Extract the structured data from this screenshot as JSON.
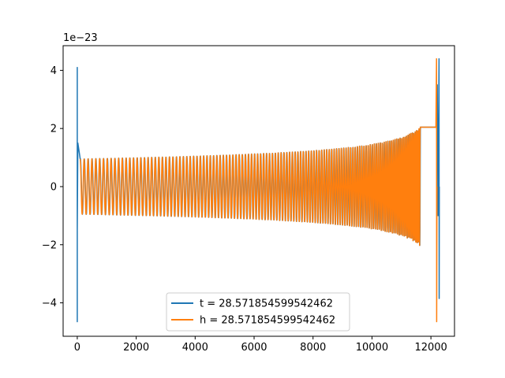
{
  "chart_data": {
    "type": "line",
    "title": "",
    "xlabel": "",
    "ylabel": "",
    "y_offset_label": "1e−23",
    "xlim": [
      -480,
      12800
    ],
    "ylim": [
      -5.15,
      4.85
    ],
    "x_ticks": [
      0,
      2000,
      4000,
      6000,
      8000,
      10000,
      12000
    ],
    "x_tick_labels": [
      "0",
      "2000",
      "4000",
      "6000",
      "8000",
      "10000",
      "12000"
    ],
    "y_ticks": [
      4,
      2,
      0,
      -2,
      -4
    ],
    "y_tick_labels": [
      "4",
      "2",
      "0",
      "−2",
      "−4"
    ],
    "grid": false,
    "legend_position": "lower-center",
    "series": [
      {
        "name": "t = 28.571854599542462",
        "color": "#1f77b4",
        "description_points": [
          {
            "x": 0,
            "y": -4.65
          },
          {
            "x": 0,
            "y": 4.1
          },
          {
            "x": 50,
            "y": 0.95
          },
          {
            "x": 12200,
            "y": 3.5
          },
          {
            "x": 12280,
            "y": 4.4
          },
          {
            "x": 12280,
            "y": -3.85
          }
        ]
      },
      {
        "name": "h = 28.571854599542462",
        "color": "#ff7f0e",
        "description_points": [
          {
            "x": 100,
            "y": 0.95
          },
          {
            "x": 12200,
            "y": 4.4
          },
          {
            "x": 12200,
            "y": -4.65
          }
        ]
      }
    ]
  }
}
